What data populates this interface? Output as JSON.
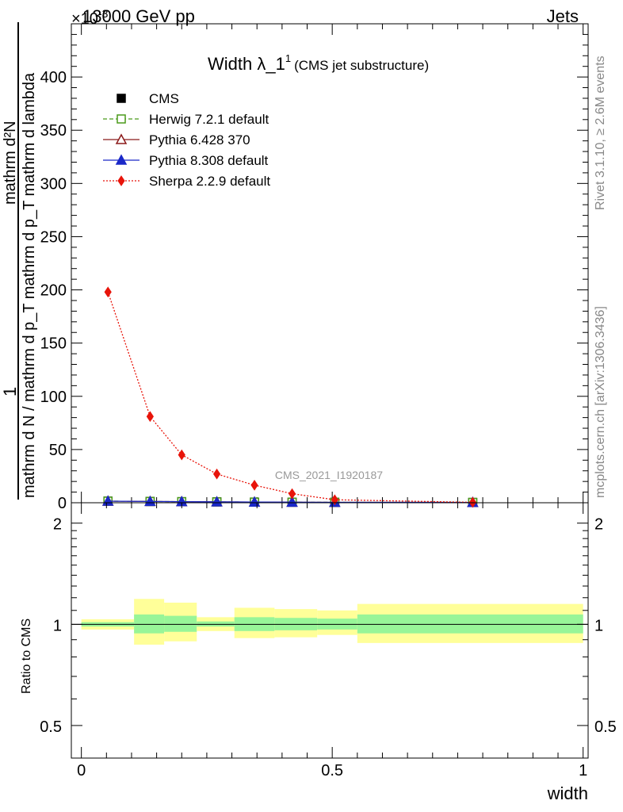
{
  "header": {
    "energy_label": "13000 GeV pp",
    "exponent_label": "×10",
    "exponent_sup": "-3",
    "process_label": "Jets",
    "watermark": "CMS_2021_I1920187"
  },
  "side": {
    "rivet_label": "Rivet 3.1.10, ≥ 2.6M events",
    "mcplots_label": "mcplots.cern.ch [arXiv:1306.3436]"
  },
  "chart_data": [
    {
      "type": "line",
      "title": "Width λ_1",
      "title_sup": "1",
      "subtitle": "(CMS jet substructure)",
      "ylabel_numerator": "1",
      "ylabel_numerator_line": "mathrm d²N",
      "ylabel_denominator": "mathrm d N / mathrm d p_T mathrm d p_T mathrm d lambda",
      "xlim": [
        -0.02,
        1.01
      ],
      "ylim": [
        0,
        450
      ],
      "y_ticks": [
        0,
        50,
        100,
        150,
        200,
        250,
        300,
        350,
        400
      ],
      "y_tick_labels": [
        "0",
        "50",
        "100",
        "150",
        "200",
        "250",
        "300",
        "350",
        "400"
      ],
      "x": [
        0.053,
        0.137,
        0.2,
        0.27,
        0.345,
        0.42,
        0.505,
        0.78
      ],
      "series": [
        {
          "name": "CMS",
          "color": "#000000",
          "marker": "square-filled",
          "values": [
            1.5,
            1.2,
            1.0,
            0.8,
            0.6,
            0.5,
            0.4,
            0.3
          ]
        },
        {
          "name": "Herwig 7.2.1 default",
          "color": "#4a9a1a",
          "marker": "square-open",
          "line": "dashed",
          "values": [
            1.5,
            1.2,
            1.0,
            0.8,
            0.6,
            0.5,
            0.4,
            0.3
          ]
        },
        {
          "name": "Pythia 6.428 370",
          "color": "#8b1a1a",
          "marker": "triangle-open",
          "line": "solid",
          "values": [
            1.5,
            1.2,
            1.0,
            0.8,
            0.6,
            0.5,
            0.4,
            0.3
          ]
        },
        {
          "name": "Pythia 8.308 default",
          "color": "#1a28c8",
          "marker": "triangle-filled",
          "line": "solid",
          "values": [
            1.5,
            1.2,
            1.0,
            0.8,
            0.6,
            0.5,
            0.4,
            0.3
          ]
        },
        {
          "name": "Sherpa 2.2.9 default",
          "color": "#e8140a",
          "marker": "diamond-filled",
          "line": "dotted",
          "values": [
            198,
            81,
            45,
            27,
            16.5,
            8.5,
            2.8,
            0.4
          ]
        }
      ],
      "legend": "top-left",
      "grid": false
    },
    {
      "type": "area",
      "ylabel": "Ratio to CMS",
      "xlabel": "width",
      "xlim": [
        -0.02,
        1.01
      ],
      "ylim": [
        0.4,
        2.3
      ],
      "log_y": true,
      "x_ticks": [
        0,
        0.5,
        1
      ],
      "x_tick_labels": [
        "0",
        "0.5",
        "1"
      ],
      "y_ticks": [
        0.5,
        1,
        2
      ],
      "y_tick_labels": [
        "0.5",
        "1",
        "2"
      ],
      "band_colors": {
        "inner": "#98f598",
        "outer": "#ffff99"
      },
      "bins": [
        {
          "x0": 0.0,
          "x1": 0.105,
          "inner": [
            0.985,
            1.015
          ],
          "outer": [
            0.965,
            1.035
          ]
        },
        {
          "x0": 0.105,
          "x1": 0.165,
          "inner": [
            0.94,
            1.07
          ],
          "outer": [
            0.87,
            1.19
          ]
        },
        {
          "x0": 0.165,
          "x1": 0.23,
          "inner": [
            0.95,
            1.06
          ],
          "outer": [
            0.89,
            1.16
          ]
        },
        {
          "x0": 0.23,
          "x1": 0.305,
          "inner": [
            0.985,
            1.02
          ],
          "outer": [
            0.955,
            1.05
          ]
        },
        {
          "x0": 0.305,
          "x1": 0.385,
          "inner": [
            0.955,
            1.05
          ],
          "outer": [
            0.91,
            1.12
          ]
        },
        {
          "x0": 0.385,
          "x1": 0.47,
          "inner": [
            0.96,
            1.045
          ],
          "outer": [
            0.915,
            1.11
          ]
        },
        {
          "x0": 0.47,
          "x1": 0.55,
          "inner": [
            0.965,
            1.04
          ],
          "outer": [
            0.93,
            1.1
          ]
        },
        {
          "x0": 0.55,
          "x1": 1.0,
          "inner": [
            0.94,
            1.07
          ],
          "outer": [
            0.88,
            1.15
          ]
        }
      ]
    }
  ]
}
